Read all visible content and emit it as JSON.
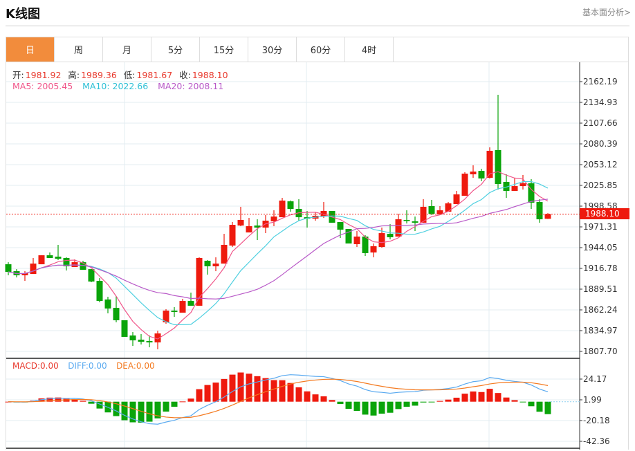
{
  "header": {
    "title": "K线图",
    "link": "基本面分析>"
  },
  "tabs": [
    {
      "label": "日",
      "active": true
    },
    {
      "label": "周"
    },
    {
      "label": "月"
    },
    {
      "label": "5分"
    },
    {
      "label": "15分"
    },
    {
      "label": "30分"
    },
    {
      "label": "60分"
    },
    {
      "label": "4时"
    }
  ],
  "ohlc_info": {
    "open_label": "开:",
    "open": "1981.92",
    "high_label": "高:",
    "high": "1989.36",
    "low_label": "低:",
    "low": "1981.67",
    "close_label": "收:",
    "close": "1988.10"
  },
  "ma_info": {
    "ma5": "MA5: 2005.45",
    "ma10": "MA10: 2022.66",
    "ma20": "MA20: 2008.11"
  },
  "macd_info": {
    "macd": "MACD:0.00",
    "diff": "DIFF:0.00",
    "dea": "DEA:0.00"
  },
  "last_price": "1988.10",
  "colors": {
    "up": "#ee1a0e",
    "down": "#0aa40a",
    "ma5": "#f0568a",
    "ma10": "#4fd0e0",
    "ma20": "#b95ac8",
    "diff": "#5aaaf0",
    "dea": "#f47a20",
    "accent": "#f28c3c"
  },
  "chart_data": {
    "type": "candlestick",
    "price_axis": [
      "2162.19",
      "2134.93",
      "2107.66",
      "2080.39",
      "2053.12",
      "2025.85",
      "1998.58",
      "1971.31",
      "1944.05",
      "1916.78",
      "1889.51",
      "1862.24",
      "1834.97",
      "1807.70"
    ],
    "price_range": [
      1807.7,
      2162.19
    ],
    "macd_axis": [
      "24.17",
      "1.99",
      "-20.18",
      "-42.36"
    ],
    "macd_range": [
      -42.36,
      24.17
    ],
    "candles": [
      [
        1922.2,
        1912.2,
        1924.9,
        1907.7
      ],
      [
        1913.1,
        1907.7,
        1915.8,
        1904.9
      ],
      [
        1907.7,
        1910.4,
        1913.1,
        1900.4
      ],
      [
        1909.5,
        1923.1,
        1930.4,
        1909.5
      ],
      [
        1922.2,
        1934.0,
        1934.0,
        1922.2
      ],
      [
        1934.0,
        1930.4,
        1937.7,
        1930.4
      ],
      [
        1932.2,
        1929.5,
        1947.7,
        1927.7
      ],
      [
        1930.4,
        1919.5,
        1931.3,
        1914.0
      ],
      [
        1918.6,
        1924.9,
        1928.6,
        1918.6
      ],
      [
        1924.9,
        1914.9,
        1926.8,
        1914.9
      ],
      [
        1915.8,
        1899.5,
        1915.8,
        1898.6
      ],
      [
        1900.4,
        1874.0,
        1904.0,
        1872.2
      ],
      [
        1875.9,
        1864.0,
        1879.5,
        1857.7
      ],
      [
        1864.9,
        1848.6,
        1880.4,
        1845.9
      ],
      [
        1848.6,
        1826.8,
        1848.6,
        1826.8
      ],
      [
        1828.6,
        1822.2,
        1833.1,
        1814.9
      ],
      [
        1823.1,
        1820.4,
        1830.4,
        1816.8
      ],
      [
        1821.3,
        1819.5,
        1828.6,
        1813.1
      ],
      [
        1819.5,
        1831.3,
        1834.9,
        1810.4
      ],
      [
        1845.9,
        1861.3,
        1863.1,
        1844.0
      ],
      [
        1861.3,
        1859.5,
        1865.9,
        1853.1
      ],
      [
        1858.6,
        1874.0,
        1876.8,
        1858.6
      ],
      [
        1874.0,
        1867.7,
        1884.9,
        1867.7
      ],
      [
        1867.7,
        1930.4,
        1931.3,
        1867.7
      ],
      [
        1926.8,
        1919.5,
        1927.7,
        1908.6
      ],
      [
        1919.5,
        1923.1,
        1931.3,
        1913.1
      ],
      [
        1923.1,
        1947.7,
        1962.2,
        1923.1
      ],
      [
        1946.8,
        1974.0,
        1977.7,
        1944.9
      ],
      [
        1973.1,
        1980.4,
        1997.7,
        1972.2
      ],
      [
        1964.0,
        1972.2,
        1983.1,
        1964.0
      ],
      [
        1973.1,
        1970.4,
        1981.3,
        1954.0
      ],
      [
        1970.4,
        1979.5,
        1986.8,
        1963.1
      ],
      [
        1978.6,
        1984.9,
        1993.1,
        1972.2
      ],
      [
        1984.0,
        2005.9,
        2009.5,
        1984.0
      ],
      [
        2004.9,
        1994.9,
        2006.0,
        1991.3
      ],
      [
        1994.9,
        1984.0,
        2007.7,
        1979.5
      ],
      [
        1984.0,
        1982.2,
        1992.2,
        1970.4
      ],
      [
        1982.2,
        1985.9,
        1990.4,
        1979.5
      ],
      [
        1984.9,
        1992.2,
        2004.0,
        1983.1
      ],
      [
        1992.2,
        1976.8,
        1992.2,
        1976.8
      ],
      [
        1977.7,
        1967.7,
        1977.7,
        1956.7
      ],
      [
        1968.6,
        1949.5,
        1968.6,
        1949.5
      ],
      [
        1948.6,
        1958.6,
        1965.8,
        1944.9
      ],
      [
        1958.6,
        1936.8,
        1960.4,
        1933.1
      ],
      [
        1937.7,
        1945.9,
        1949.5,
        1931.3
      ],
      [
        1944.9,
        1963.1,
        1970.4,
        1944.0
      ],
      [
        1962.2,
        1957.7,
        1974.9,
        1954.9
      ],
      [
        1958.6,
        1981.3,
        1988.6,
        1958.6
      ],
      [
        1980.4,
        1979.5,
        1993.1,
        1975.8
      ],
      [
        1978.6,
        1976.8,
        1984.9,
        1965.8
      ],
      [
        1976.8,
        1997.7,
        2007.7,
        1976.8
      ],
      [
        1998.6,
        1988.6,
        2006.8,
        1986.8
      ],
      [
        1987.7,
        1993.1,
        1998.6,
        1987.7
      ],
      [
        1991.3,
        2002.2,
        2004.0,
        1991.3
      ],
      [
        2001.3,
        2014.0,
        2018.6,
        2001.3
      ],
      [
        2012.2,
        2041.3,
        2043.1,
        2012.2
      ],
      [
        2040.4,
        2044.0,
        2052.2,
        2035.8
      ],
      [
        2044.9,
        2034.9,
        2047.7,
        2031.3
      ],
      [
        2035.8,
        2071.3,
        2075.8,
        2034.9
      ],
      [
        2072.2,
        2027.7,
        2144.9,
        2020.4
      ],
      [
        2030.4,
        2018.6,
        2040.4,
        2009.5
      ],
      [
        2018.6,
        2024.9,
        2035.8,
        2018.6
      ],
      [
        2024.9,
        2028.6,
        2039.5,
        2020.4
      ],
      [
        2028.6,
        2003.1,
        2034.0,
        1994.9
      ],
      [
        2004.0,
        1981.3,
        2007.7,
        1976.8
      ],
      [
        1981.92,
        1988.1,
        1989.36,
        1981.67
      ]
    ]
  }
}
